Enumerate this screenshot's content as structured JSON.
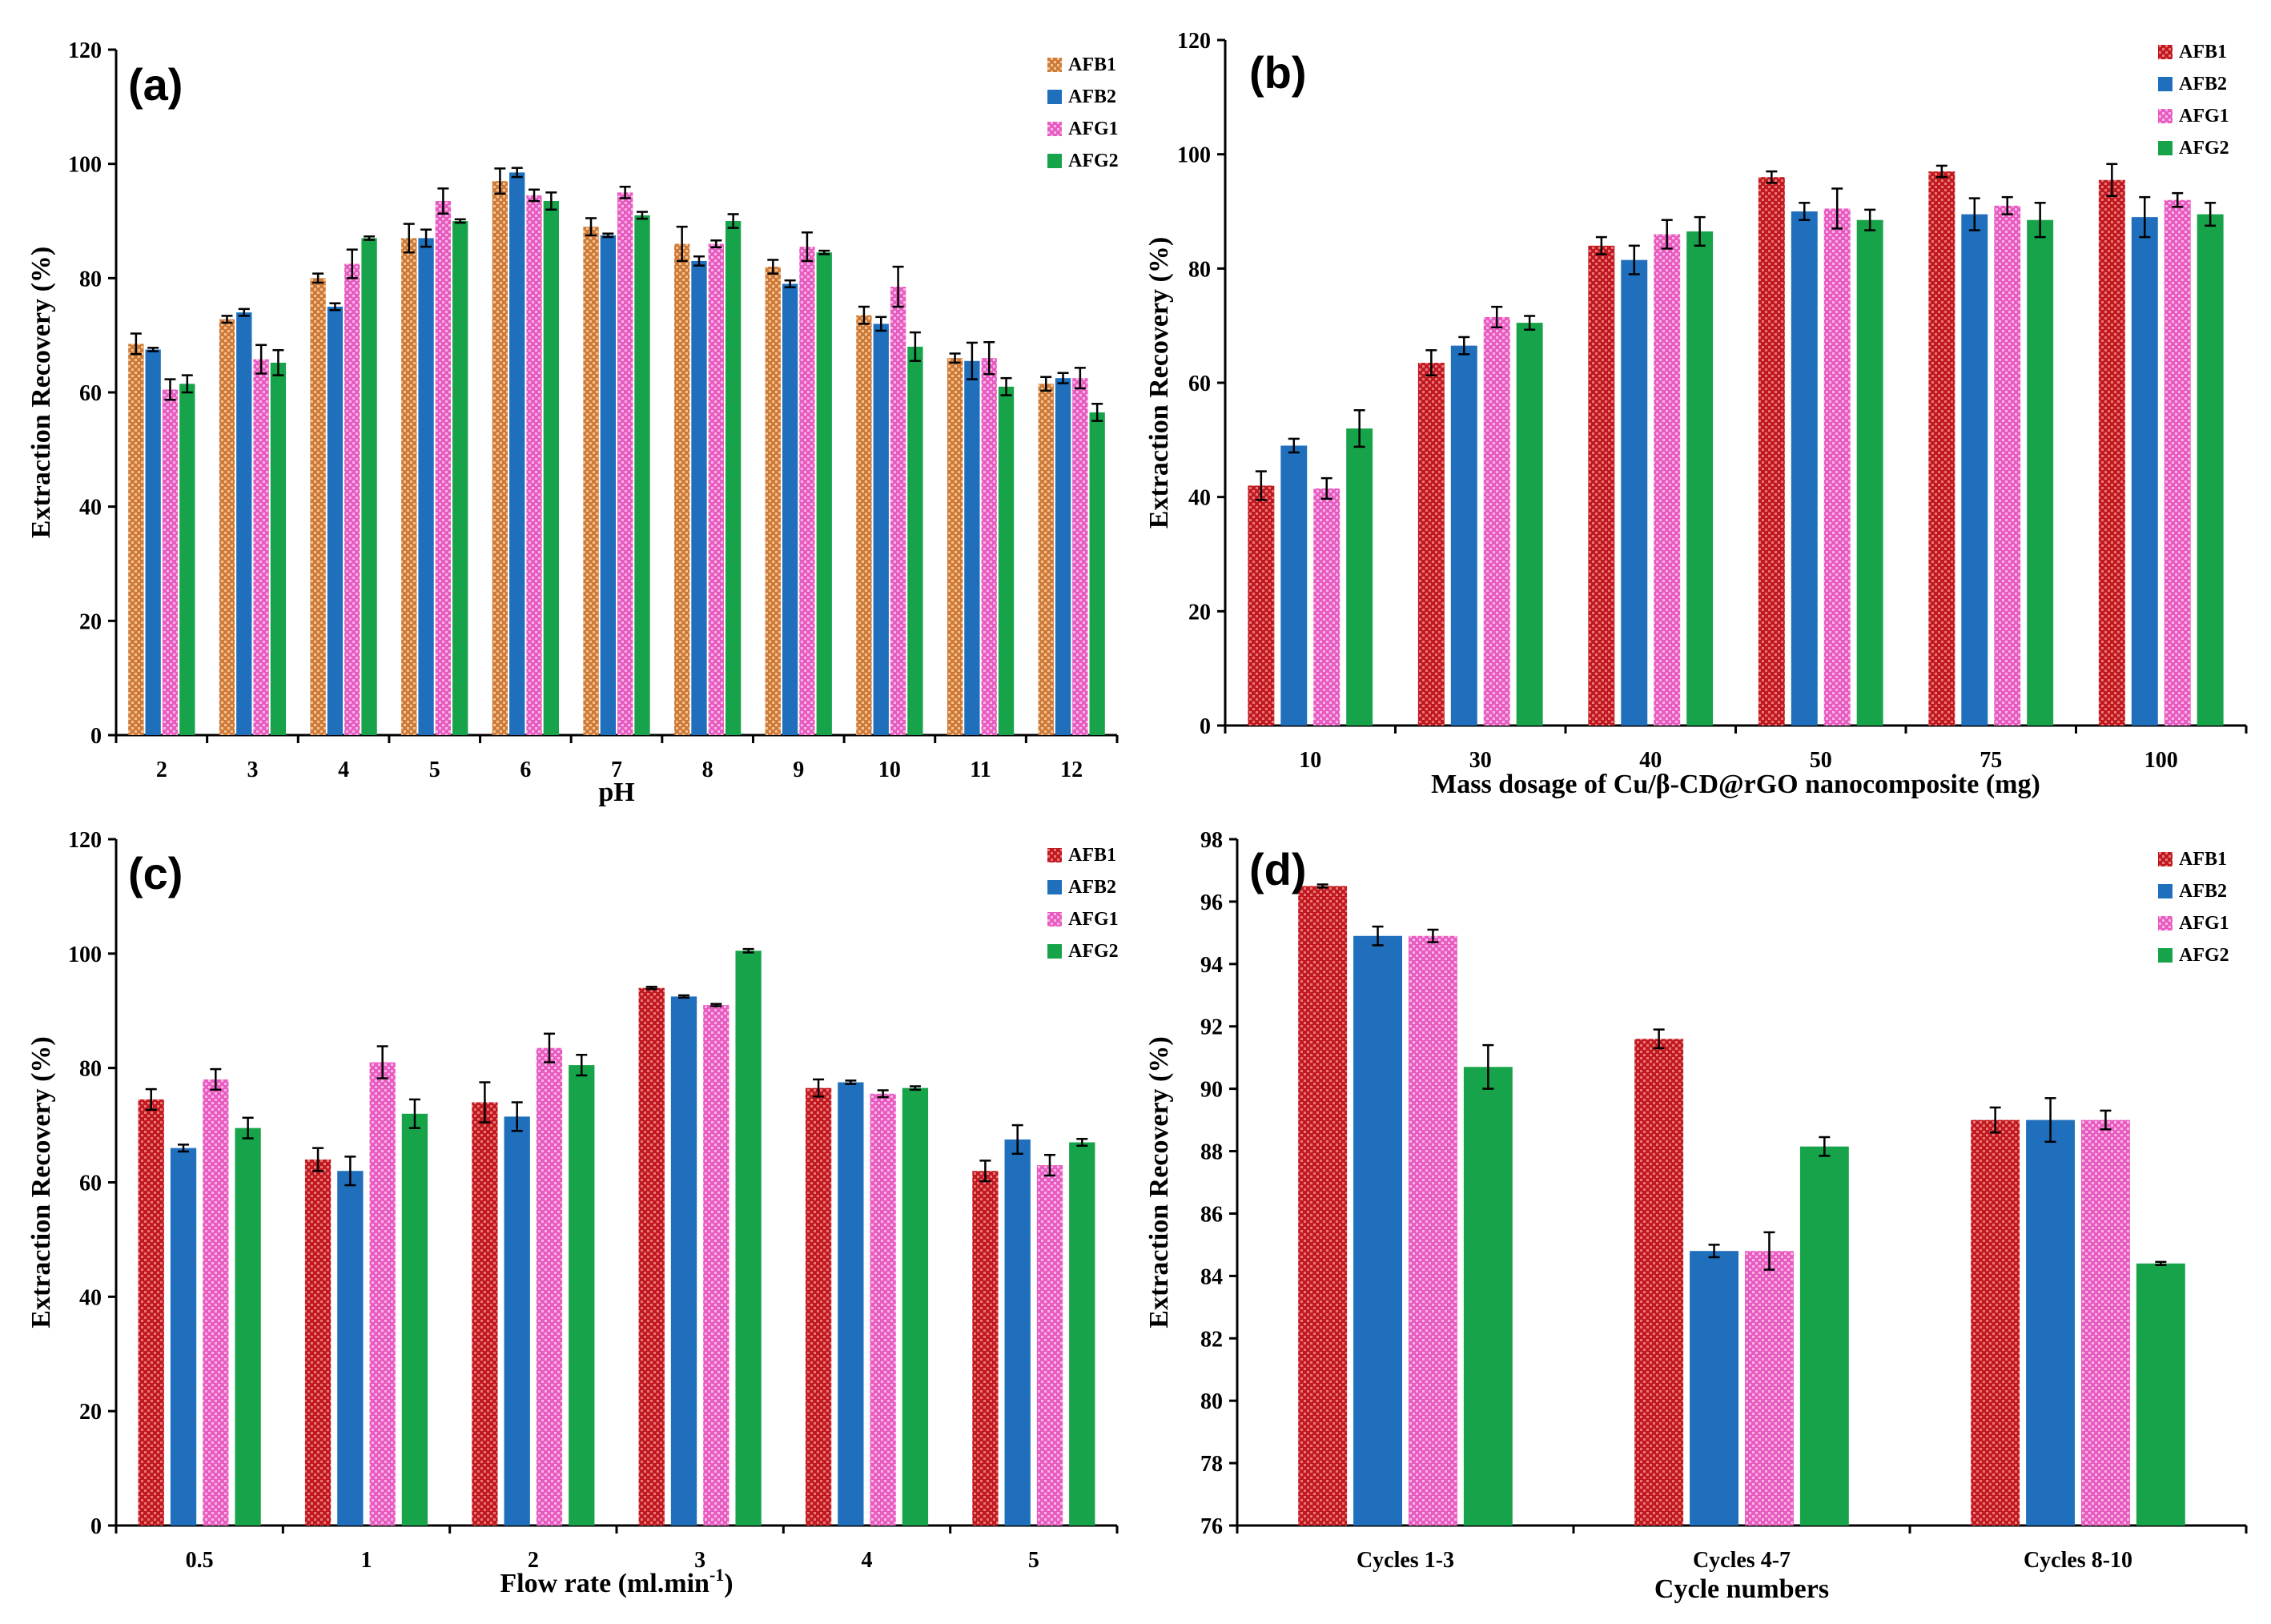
{
  "colors": {
    "AFB1_a": "#cd7a3a",
    "AFB1": "#c0191f",
    "AFB2": "#1f6fbd",
    "AFG1": "#e85cc1",
    "AFG2": "#17a34a",
    "error_bar": "#000000",
    "axis": "#000000"
  },
  "chart_data": [
    {
      "type": "bar",
      "panel_label": "(a)",
      "categories": [
        "2",
        "3",
        "4",
        "5",
        "6",
        "7",
        "8",
        "9",
        "10",
        "11",
        "12"
      ],
      "series": [
        {
          "name": "AFB1",
          "values": [
            68.5,
            72.8,
            80,
            87,
            97,
            89,
            86,
            82,
            73.5,
            66,
            61.5
          ],
          "errors": [
            1.8,
            0.6,
            0.8,
            2.5,
            2.2,
            1.5,
            3.0,
            1.2,
            1.5,
            0.8,
            1.2
          ]
        },
        {
          "name": "AFB2",
          "values": [
            67.5,
            74,
            75,
            87,
            98.5,
            87.5,
            83,
            79,
            72,
            65.5,
            62.5
          ],
          "errors": [
            0.3,
            0.6,
            0.6,
            1.5,
            0.8,
            0.3,
            0.8,
            0.6,
            1.2,
            3.2,
            0.9
          ]
        },
        {
          "name": "AFG1",
          "values": [
            60.5,
            65.8,
            82.5,
            93.5,
            94.5,
            95,
            86,
            85.5,
            78.5,
            66,
            62.5
          ],
          "errors": [
            1.8,
            2.5,
            2.5,
            2.2,
            1.0,
            1.0,
            0.6,
            2.5,
            3.5,
            2.8,
            1.8
          ]
        },
        {
          "name": "AFG2",
          "values": [
            61.5,
            65.2,
            87,
            90,
            93.5,
            91,
            90,
            84.5,
            68,
            61,
            56.5
          ],
          "errors": [
            1.5,
            2.2,
            0.3,
            0.3,
            1.5,
            0.6,
            1.2,
            0.3,
            2.5,
            1.5,
            1.5
          ]
        }
      ],
      "xlabel": "pH",
      "ylabel": "Extraction Recovery  (%)",
      "ylim": [
        0,
        120
      ],
      "yticks": [
        "0",
        "20",
        "40",
        "60",
        "80",
        "100",
        "120"
      ],
      "legend_position": "top-right",
      "grid": false
    },
    {
      "type": "bar",
      "panel_label": "(b)",
      "categories": [
        "10",
        "30",
        "40",
        "50",
        "75",
        "100"
      ],
      "series": [
        {
          "name": "AFB1",
          "values": [
            42,
            63.5,
            84,
            96,
            97,
            95.5
          ],
          "errors": [
            2.5,
            2.2,
            1.5,
            1.0,
            1.0,
            2.8
          ]
        },
        {
          "name": "AFB2",
          "values": [
            49,
            66.5,
            81.5,
            90,
            89.5,
            89
          ],
          "errors": [
            1.2,
            1.5,
            2.5,
            1.5,
            2.8,
            3.5
          ]
        },
        {
          "name": "AFG1",
          "values": [
            41.5,
            71.5,
            86,
            90.5,
            91,
            92
          ],
          "errors": [
            1.8,
            1.8,
            2.5,
            3.5,
            1.5,
            1.2
          ]
        },
        {
          "name": "AFG2",
          "values": [
            52,
            70.5,
            86.5,
            88.5,
            88.5,
            89.5
          ],
          "errors": [
            3.2,
            1.2,
            2.5,
            1.8,
            3.0,
            2.0
          ]
        }
      ],
      "xlabel": "Mass dosage of Cu/β-CD@rGO nanocomposite (mg)",
      "ylabel": "Extraction Recovery  (%)",
      "ylim": [
        0,
        120
      ],
      "yticks": [
        "0",
        "20",
        "40",
        "60",
        "80",
        "100",
        "120"
      ],
      "legend_position": "top-right",
      "grid": false
    },
    {
      "type": "bar",
      "panel_label": "(c)",
      "categories": [
        "0.5",
        "1",
        "2",
        "3",
        "4",
        "5"
      ],
      "series": [
        {
          "name": "AFB1",
          "values": [
            74.5,
            64,
            74,
            94,
            76.5,
            62
          ],
          "errors": [
            1.8,
            2.0,
            3.5,
            0.2,
            1.5,
            1.8
          ]
        },
        {
          "name": "AFB2",
          "values": [
            66,
            62,
            71.5,
            92.5,
            77.5,
            67.5
          ],
          "errors": [
            0.6,
            2.5,
            2.5,
            0.2,
            0.3,
            2.5
          ]
        },
        {
          "name": "AFG1",
          "values": [
            78,
            81,
            83.5,
            91,
            75.5,
            63
          ],
          "errors": [
            1.8,
            2.8,
            2.5,
            0.2,
            0.6,
            1.8
          ]
        },
        {
          "name": "AFG2",
          "values": [
            69.5,
            72,
            80.5,
            100.5,
            76.5,
            67
          ],
          "errors": [
            1.8,
            2.5,
            1.8,
            0.3,
            0.3,
            0.6
          ]
        }
      ],
      "xlabel": "Flow rate (ml.min",
      "xlabel_superscript": "-1",
      "xlabel_suffix": ")",
      "ylabel": "Extraction Recovery  (%)",
      "ylim": [
        0,
        120
      ],
      "yticks": [
        "0",
        "20",
        "40",
        "60",
        "80",
        "100",
        "120"
      ],
      "legend_position": "top-right",
      "grid": false
    },
    {
      "type": "bar",
      "panel_label": "(d)",
      "categories": [
        "Cycles 1-3",
        "Cycles 4-7",
        "Cycles 8-10"
      ],
      "series": [
        {
          "name": "AFB1",
          "values": [
            96.5,
            91.6,
            89
          ],
          "errors": [
            0.05,
            0.3,
            0.4
          ]
        },
        {
          "name": "AFB2",
          "values": [
            94.9,
            84.8,
            89
          ],
          "errors": [
            0.3,
            0.2,
            0.7
          ]
        },
        {
          "name": "AFG1",
          "values": [
            94.9,
            84.8,
            89
          ],
          "errors": [
            0.2,
            0.6,
            0.3
          ]
        },
        {
          "name": "AFG2",
          "values": [
            90.7,
            88.15,
            84.4
          ],
          "errors": [
            0.7,
            0.3,
            0.05
          ]
        }
      ],
      "xlabel": "Cycle numbers",
      "ylabel": "Extraction Recovery  (%)",
      "ylim": [
        76,
        98
      ],
      "yticks": [
        "76",
        "78",
        "80",
        "82",
        "84",
        "86",
        "88",
        "90",
        "92",
        "94",
        "96",
        "98"
      ],
      "legend_position": "top-right",
      "grid": false
    }
  ]
}
